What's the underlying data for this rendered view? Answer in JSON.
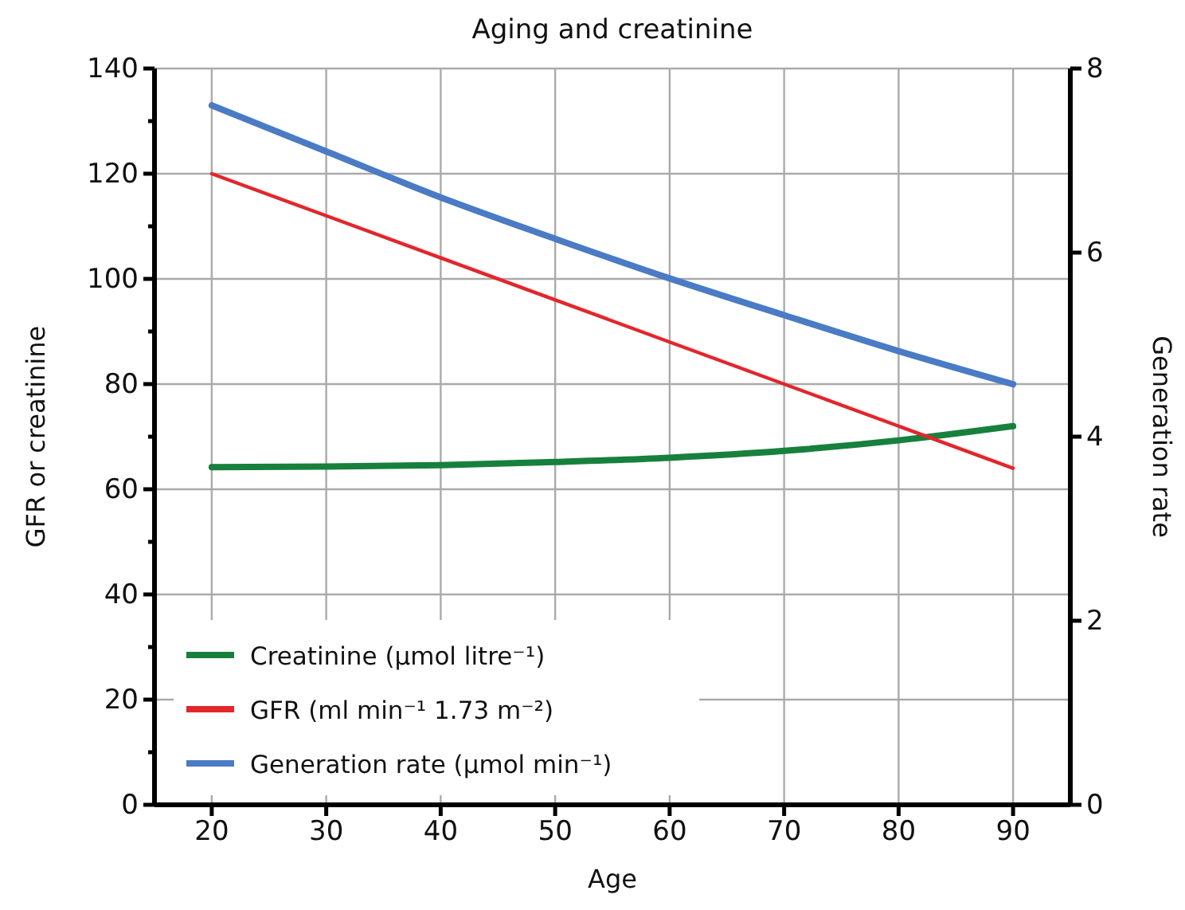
{
  "chart_data": {
    "type": "line",
    "title": "Aging and creatinine",
    "xlabel": "Age",
    "ylabel": "GFR or creatinine",
    "y2label": "Generation rate",
    "x": [
      20,
      30,
      40,
      50,
      60,
      70,
      80,
      90
    ],
    "xlim": [
      15,
      95
    ],
    "xticks": [
      20,
      30,
      40,
      50,
      60,
      70,
      80,
      90
    ],
    "ylim": [
      0,
      140
    ],
    "yticks": [
      0,
      {
        "value": 10,
        "label": null
      },
      20,
      {
        "value": 30,
        "label": null
      },
      40,
      {
        "value": 50,
        "label": null
      },
      60,
      {
        "value": 70,
        "label": null
      },
      80,
      {
        "value": 90,
        "label": null
      },
      100,
      {
        "value": 110,
        "label": null
      },
      120,
      {
        "value": 130,
        "label": null
      },
      140
    ],
    "y2lim": [
      0,
      8
    ],
    "y2ticks": [
      0,
      2,
      4,
      6,
      8
    ],
    "grid": true,
    "legend": "bottom left",
    "marker": "none",
    "line_style": "solid",
    "series": [
      {
        "name": "Creatinine (μmol litre⁻¹)",
        "color": "#17803d",
        "values": [
          64.2,
          64.3,
          64.6,
          65.2,
          66.0,
          67.3,
          69.3,
          72.0
        ]
      },
      {
        "name": "GFR (ml min⁻¹ 1.73 m⁻²)",
        "color": "#e3262b",
        "values": [
          120,
          112,
          104,
          96,
          88,
          80,
          72,
          64
        ]
      },
      {
        "name": "Generation rate (μmol min⁻¹)",
        "color": "#4a7bc4",
        "axis": "y2",
        "values": [
          7.6,
          7.1,
          6.6,
          6.15,
          5.72,
          5.32,
          4.93,
          4.57
        ]
      }
    ]
  }
}
